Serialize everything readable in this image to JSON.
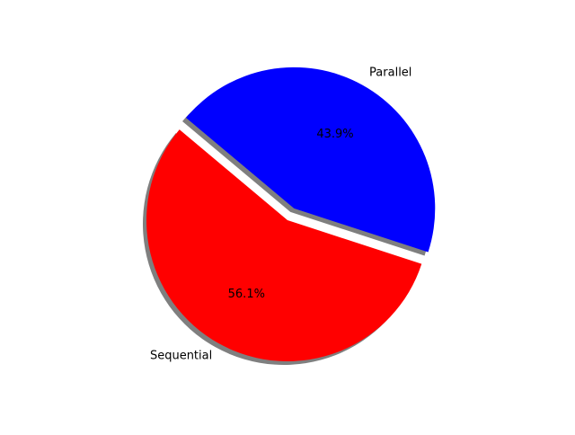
{
  "chart_data": {
    "type": "pie",
    "title": "",
    "slices": [
      {
        "label": "Sequential",
        "value": 56.1,
        "pct_label": "56.1%",
        "color": "#ff0000",
        "explode": false
      },
      {
        "label": "Parallel",
        "value": 43.9,
        "pct_label": "43.9%",
        "color": "#0000ff",
        "explode": true
      }
    ],
    "shadow": true,
    "start_angle_deg": 140
  }
}
